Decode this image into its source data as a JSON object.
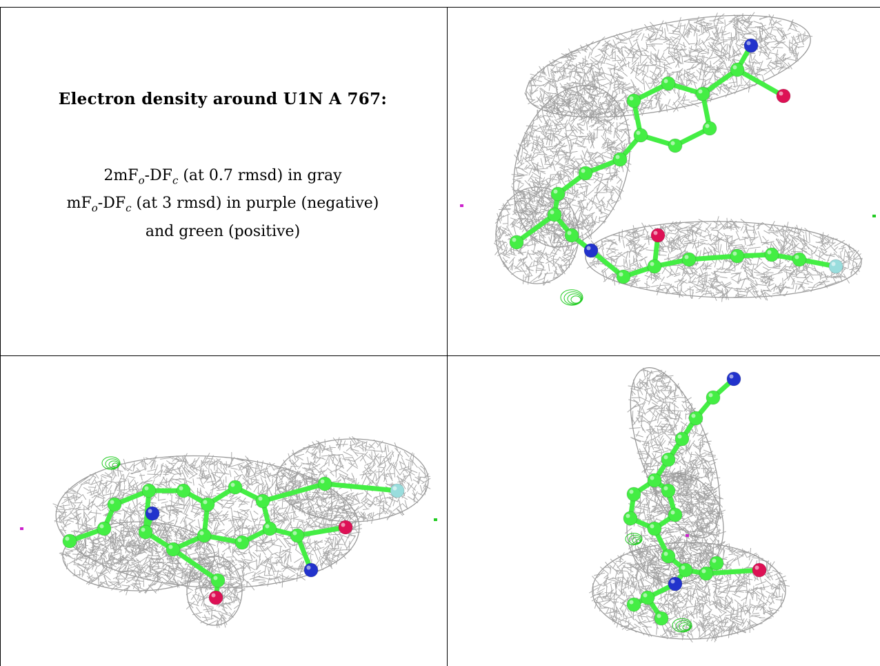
{
  "caption": {
    "title": "Electron density around U1N A 767:",
    "line1_pre": "2mF",
    "line1_sub1": "o",
    "line1_mid": "-DF",
    "line1_sub2": "c",
    "line1_post": " (at 0.7 rmsd) in gray",
    "line2_pre": "mF",
    "line2_sub1": "o",
    "line2_mid": "-DF",
    "line2_sub2": "c",
    "line2_post": " (at 3 rmsd) in purple (negative)",
    "line3": "and green (positive)"
  },
  "colors": {
    "mesh_2fofc": "#9a9a9a",
    "mesh_fofc_positive": "#22cc22",
    "mesh_fofc_negative": "#cc22cc",
    "carbon": "#44ee44",
    "nitrogen": "#2233cc",
    "oxygen": "#dd1155",
    "fluorine": "#99dddd",
    "grid_line": "#000000"
  },
  "panels": [
    {
      "name": "view-1",
      "atom_types": [
        "carbon",
        "nitrogen",
        "oxygen",
        "fluorine"
      ]
    },
    {
      "name": "view-2",
      "atom_types": [
        "carbon",
        "nitrogen",
        "oxygen",
        "fluorine"
      ]
    },
    {
      "name": "view-3",
      "atom_types": [
        "carbon",
        "nitrogen",
        "oxygen"
      ]
    }
  ]
}
